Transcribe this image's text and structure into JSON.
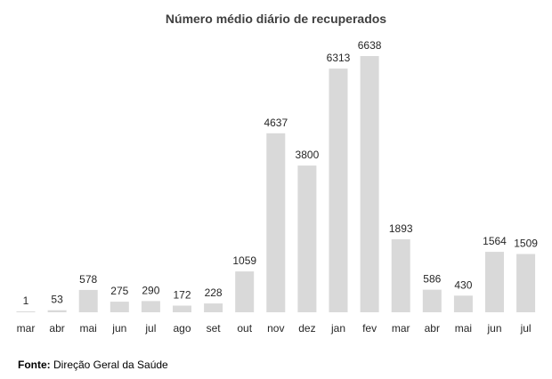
{
  "chart_data": {
    "type": "bar",
    "title": "Número médio diário de recuperados",
    "categories": [
      "mar",
      "abr",
      "mai",
      "jun",
      "jul",
      "ago",
      "set",
      "out",
      "nov",
      "dez",
      "jan",
      "fev",
      "mar",
      "abr",
      "mai",
      "jun",
      "jul"
    ],
    "values": [
      1,
      53,
      578,
      275,
      290,
      172,
      228,
      1059,
      4637,
      3800,
      6313,
      6638,
      1893,
      586,
      430,
      1564,
      1509
    ],
    "ylim": [
      0,
      6638
    ],
    "bar_color": "#d9d9d9",
    "grid": false,
    "legend": "none"
  },
  "source": {
    "label": "Fonte:",
    "text": " Direção Geral da Saúde"
  }
}
